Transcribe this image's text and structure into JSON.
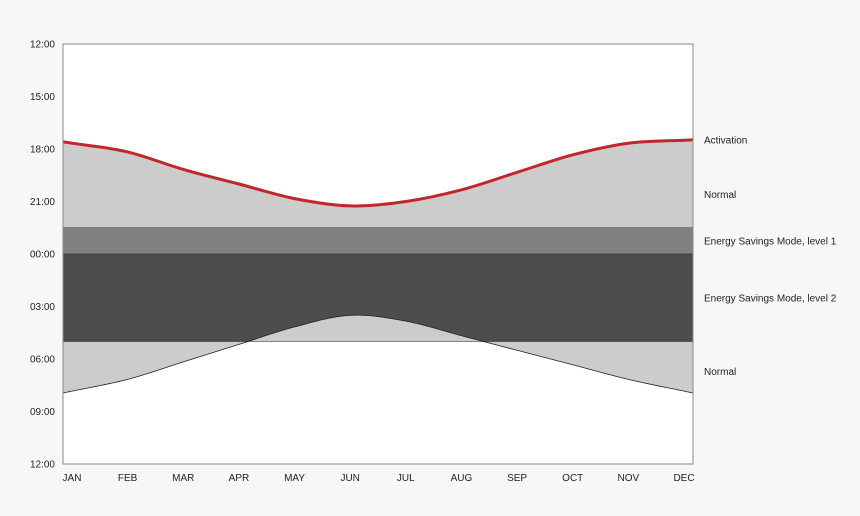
{
  "chart_data": {
    "type": "area",
    "y_axis": {
      "tick_labels": [
        "12:00",
        "15:00",
        "18:00",
        "21:00",
        "00:00",
        "03:00",
        "06:00",
        "09:00",
        "12:00"
      ],
      "range_hours_since_noon": [
        0,
        24
      ],
      "direction": "downward"
    },
    "x_axis": {
      "categories": [
        "JAN",
        "FEB",
        "MAR",
        "APR",
        "MAY",
        "JUN",
        "JUL",
        "AUG",
        "SEP",
        "OCT",
        "NOV",
        "DEC"
      ]
    },
    "activation_curve": {
      "name": "Activation",
      "color": "#c0272d",
      "x": [
        "JAN",
        "FEB",
        "MAR",
        "APR",
        "MAY",
        "JUN",
        "JUL",
        "AUG",
        "SEP",
        "OCT",
        "NOV",
        "DEC"
      ],
      "y": [
        "17:40",
        "18:10",
        "19:10",
        "20:00",
        "20:50",
        "21:15",
        "21:00",
        "20:20",
        "19:20",
        "18:20",
        "17:40",
        "17:30"
      ]
    },
    "morning_curve": {
      "x": [
        "JAN",
        "FEB",
        "MAR",
        "APR",
        "MAY",
        "JUN",
        "JUL",
        "AUG",
        "SEP",
        "OCT",
        "NOV",
        "DEC"
      ],
      "y": [
        "07:50",
        "07:10",
        "06:10",
        "05:10",
        "04:10",
        "03:30",
        "03:50",
        "04:40",
        "05:30",
        "06:20",
        "07:10",
        "07:50"
      ]
    },
    "bands": [
      {
        "label": "Normal",
        "from": "activation curve",
        "to": "22:30",
        "color": "#cccccc"
      },
      {
        "label": "Energy Savings Mode, level 1",
        "from": "22:30",
        "to": "00:00",
        "color": "#808080"
      },
      {
        "label": "Energy Savings Mode, level 2",
        "from": "00:00",
        "to": "05:00",
        "color": "#4d4d4d"
      },
      {
        "label": "Normal",
        "from": "05:00",
        "to": "morning curve",
        "color": "#cccccc"
      }
    ],
    "legend": [
      "Activation",
      "Normal",
      "Energy Savings Mode, level 1",
      "Energy Savings Mode, level 2",
      "Normal"
    ],
    "legend_placement": "right",
    "grid": false
  },
  "colors": {
    "background": "#f7f7f7",
    "plot_background": "#ffffff",
    "normal": "#cccccc",
    "esm1": "#808080",
    "esm2": "#4d4d4d",
    "activation": "#c0272d"
  }
}
